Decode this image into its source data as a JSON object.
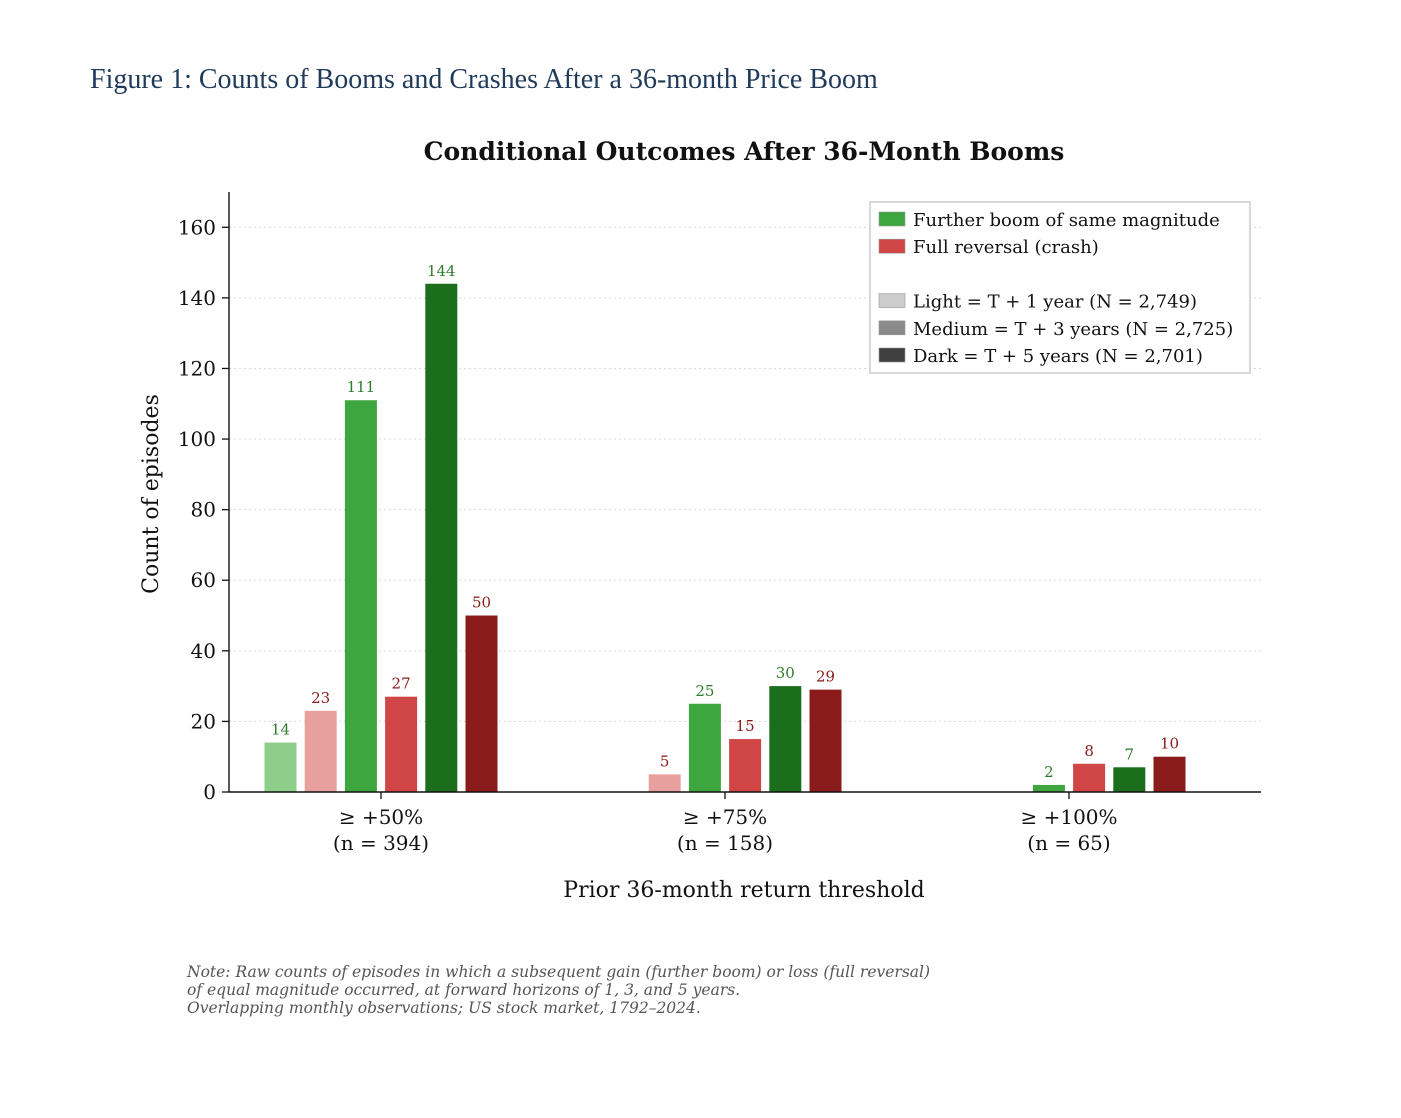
{
  "figure_caption": "Figure 1: Counts of Booms and Crashes After a 36-month Price Boom",
  "chart_data": {
    "type": "bar",
    "title": "Conditional Outcomes After 36-Month Booms",
    "xlabel": "Prior 36-month return threshold",
    "ylabel": "Count of episodes",
    "ylim": [
      0,
      170
    ],
    "yticks": [
      0,
      20,
      40,
      60,
      80,
      100,
      120,
      140,
      160
    ],
    "grid": "horizontal dotted",
    "legend_position": "top-right",
    "categories": [
      {
        "label": "≥ +50%",
        "sublabel": "(n = 394)"
      },
      {
        "label": "≥ +75%",
        "sublabel": "(n = 158)"
      },
      {
        "label": "≥ +100%",
        "sublabel": "(n = 65)"
      }
    ],
    "series": [
      {
        "outcome": "boom",
        "horizon": "T+1",
        "color": "#8fce8a",
        "label_color": "#2e7d2e",
        "values": [
          14,
          0,
          0
        ]
      },
      {
        "outcome": "crash",
        "horizon": "T+1",
        "color": "#e8a09f",
        "label_color": "#8b1a1a",
        "values": [
          23,
          5,
          0
        ]
      },
      {
        "outcome": "boom",
        "horizon": "T+3",
        "color": "#3ea63e",
        "label_color": "#2e7d2e",
        "values": [
          111,
          25,
          2
        ]
      },
      {
        "outcome": "crash",
        "horizon": "T+3",
        "color": "#d04545",
        "label_color": "#8b1a1a",
        "values": [
          27,
          15,
          8
        ]
      },
      {
        "outcome": "boom",
        "horizon": "T+5",
        "color": "#1b6e1b",
        "label_color": "#2e7d2e",
        "values": [
          144,
          30,
          7
        ]
      },
      {
        "outcome": "crash",
        "horizon": "T+5",
        "color": "#8b1a1a",
        "label_color": "#8b1a1a",
        "values": [
          50,
          29,
          10
        ]
      }
    ],
    "legend": [
      {
        "label": "Further boom of same magnitude",
        "color": "#3ea63e"
      },
      {
        "label": "Full reversal (crash)",
        "color": "#d04545"
      },
      {
        "label": "",
        "color": ""
      },
      {
        "label": "Light = T + 1 year (N = 2,749)",
        "color": "#cccccc"
      },
      {
        "label": "Medium = T + 3 years (N = 2,725)",
        "color": "#8a8a8a"
      },
      {
        "label": "Dark = T + 5 years (N = 2,701)",
        "color": "#404040"
      }
    ]
  },
  "note_lines": [
    "Note: Raw counts of episodes in which a subsequent gain (further boom) or loss (full reversal)",
    "of equal magnitude occurred, at forward horizons of 1, 3, and 5 years.",
    "Overlapping monthly observations; US stock market, 1792–2024."
  ]
}
